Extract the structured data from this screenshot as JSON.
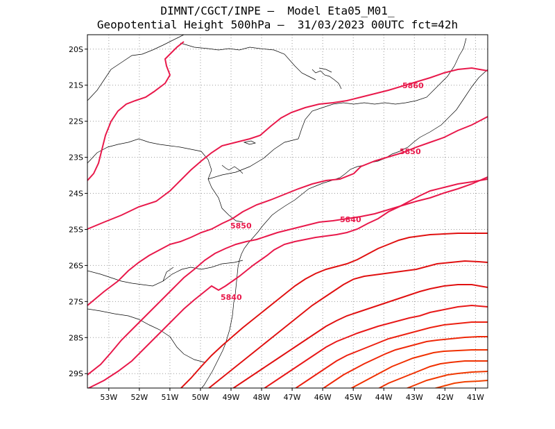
{
  "title": {
    "line1": "DIMNT/CGCT/INPE –  Model Eta05_M01_",
    "line2": "Geopotential Height 500hPa –  31/03/2023 00UTC fct=42h"
  },
  "map_data": {
    "type": "contour",
    "variable": "Geopotential Height 500hPa",
    "lon_range": [
      -53.7,
      -40.6
    ],
    "lat_range": [
      -29.4,
      -19.6
    ],
    "x_ticks": [
      "53W",
      "52W",
      "51W",
      "50W",
      "49W",
      "48W",
      "47W",
      "46W",
      "45W",
      "44W",
      "43W",
      "42W",
      "41W"
    ],
    "y_ticks": [
      "20S",
      "21S",
      "22S",
      "23S",
      "24S",
      "25S",
      "26S",
      "27S",
      "28S",
      "29S"
    ],
    "contour_labels": [
      "5860",
      "5850",
      "5840",
      "5850",
      "5840"
    ],
    "colors": {
      "contour_main": "#e8184a",
      "contour_red": "#e01010",
      "contour_orange": "#f03000",
      "grid": "#999999",
      "coast": "#000000"
    }
  }
}
